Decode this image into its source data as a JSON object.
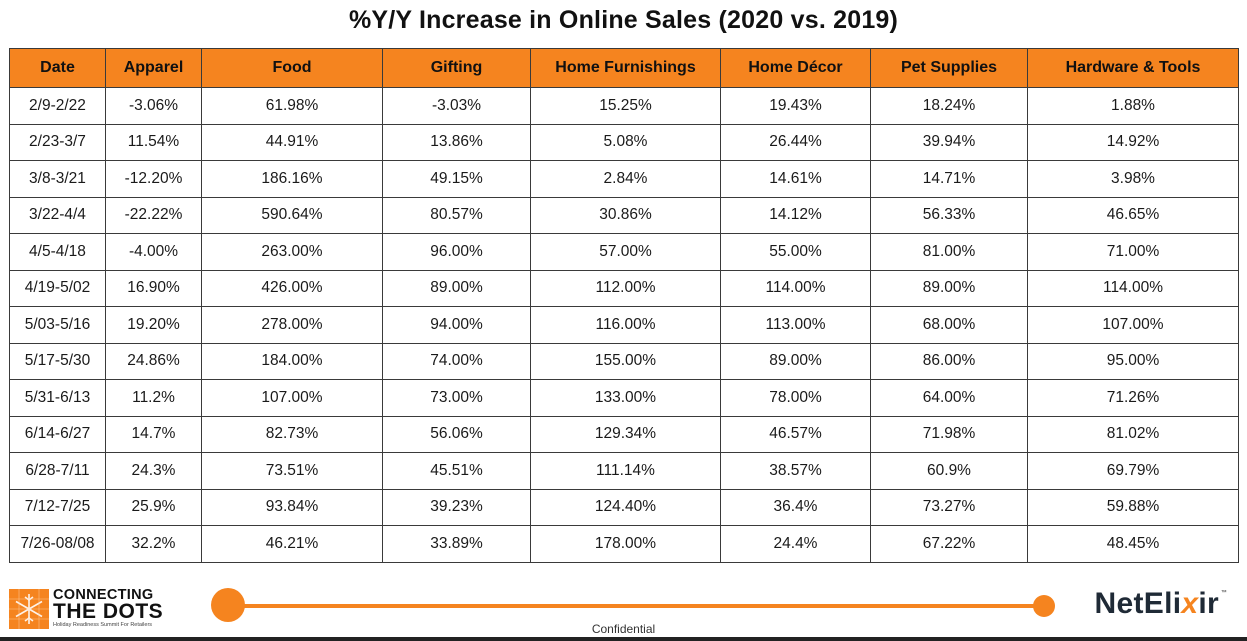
{
  "title": "%Y/Y Increase in Online Sales (2020 vs. 2019)",
  "colors": {
    "header_fill": "#f5841f",
    "accent": "#f5841f",
    "border": "#3a3a3a"
  },
  "table": {
    "columns": [
      "Date",
      "Apparel",
      "Food",
      "Gifting",
      "Home Furnishings",
      "Home Décor",
      "Pet Supplies",
      "Hardware & Tools"
    ],
    "rows": [
      [
        "2/9-2/22",
        "-3.06%",
        "61.98%",
        "-3.03%",
        "15.25%",
        "19.43%",
        "18.24%",
        "1.88%"
      ],
      [
        "2/23-3/7",
        "11.54%",
        "44.91%",
        "13.86%",
        "5.08%",
        "26.44%",
        "39.94%",
        "14.92%"
      ],
      [
        "3/8-3/21",
        "-12.20%",
        "186.16%",
        "49.15%",
        "2.84%",
        "14.61%",
        "14.71%",
        "3.98%"
      ],
      [
        "3/22-4/4",
        "-22.22%",
        "590.64%",
        "80.57%",
        "30.86%",
        "14.12%",
        "56.33%",
        "46.65%"
      ],
      [
        "4/5-4/18",
        "-4.00%",
        "263.00%",
        "96.00%",
        "57.00%",
        "55.00%",
        "81.00%",
        "71.00%"
      ],
      [
        "4/19-5/02",
        "16.90%",
        "426.00%",
        "89.00%",
        "112.00%",
        "114.00%",
        "89.00%",
        "114.00%"
      ],
      [
        "5/03-5/16",
        "19.20%",
        "278.00%",
        "94.00%",
        "116.00%",
        "113.00%",
        "68.00%",
        "107.00%"
      ],
      [
        "5/17-5/30",
        "24.86%",
        "184.00%",
        "74.00%",
        "155.00%",
        "89.00%",
        "86.00%",
        "95.00%"
      ],
      [
        "5/31-6/13",
        "11.2%",
        "107.00%",
        "73.00%",
        "133.00%",
        "78.00%",
        "64.00%",
        "71.26%"
      ],
      [
        "6/14-6/27",
        "14.7%",
        "82.73%",
        "56.06%",
        "129.34%",
        "46.57%",
        "71.98%",
        "81.02%"
      ],
      [
        "6/28-7/11",
        "24.3%",
        "73.51%",
        "45.51%",
        "111.14%",
        "38.57%",
        "60.9%",
        "69.79%"
      ],
      [
        "7/12-7/25",
        "25.9%",
        "93.84%",
        "39.23%",
        "124.40%",
        "36.4%",
        "73.27%",
        "59.88%"
      ],
      [
        "7/26-08/08",
        "32.2%",
        "46.21%",
        "33.89%",
        "178.00%",
        "24.4%",
        "67.22%",
        "48.45%"
      ]
    ]
  },
  "footer": {
    "logo_line1": "CONNECTING",
    "logo_line2": "THE DOTS",
    "logo_tagline": "Holiday Readiness Summit For Retailers",
    "logo_icon": "snowflake-grid-icon",
    "confidential": "Confidential",
    "brand_prefix": "NetEli",
    "brand_x": "x",
    "brand_suffix": "ir",
    "brand_tm": "™"
  }
}
